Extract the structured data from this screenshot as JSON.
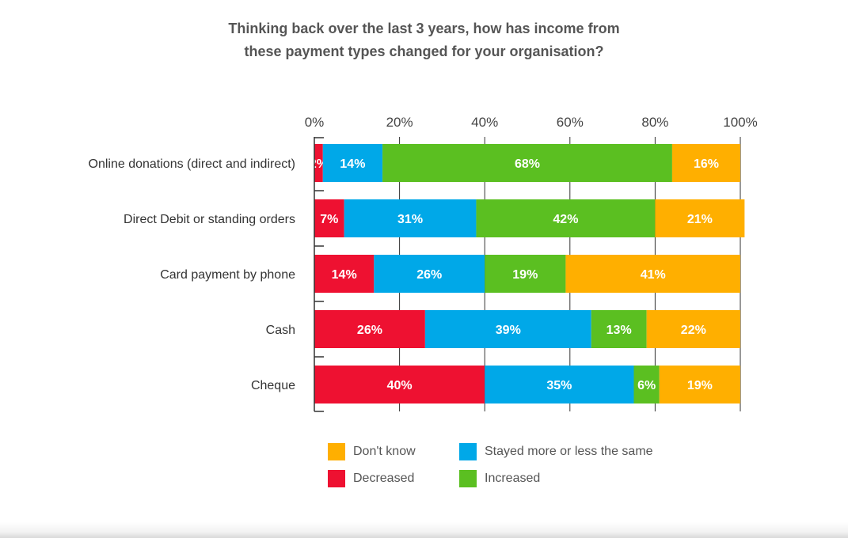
{
  "chart_data": {
    "type": "bar",
    "orientation": "horizontal",
    "stacked": true,
    "title": "Thinking back over the last 3 years, how has income from these payment types changed for your organisation?",
    "title_lines": [
      "Thinking back over the last 3 years, how has income from",
      "these payment types changed for your organisation?"
    ],
    "xlim": [
      0,
      100
    ],
    "xticks": [
      "0%",
      "20%",
      "40%",
      "60%",
      "80%",
      "100%"
    ],
    "tick_values": [
      0,
      20,
      40,
      60,
      80,
      100
    ],
    "categories": [
      "Online donations (direct and indirect)",
      "Direct Debit or standing orders",
      "Card payment by phone",
      "Cash",
      "Cheque"
    ],
    "series": [
      {
        "name": "Decreased",
        "color": "#EE1131",
        "values": [
          2,
          7,
          14,
          26,
          40
        ]
      },
      {
        "name": "Stayed more or less the same",
        "color": "#00A8E8",
        "values": [
          14,
          31,
          26,
          39,
          35
        ]
      },
      {
        "name": "Increased",
        "color": "#5BBF21",
        "values": [
          68,
          42,
          19,
          13,
          6
        ]
      },
      {
        "name": "Don't know",
        "color": "#FFAF00",
        "values": [
          16,
          21,
          41,
          22,
          19
        ]
      }
    ],
    "value_suffix": "%",
    "legend_position": "bottom",
    "grid": true
  },
  "legend": [
    {
      "name": "Don't know",
      "color": "#FFAF00"
    },
    {
      "name": "Stayed more or less the same",
      "color": "#00A8E8"
    },
    {
      "name": "Decreased",
      "color": "#EE1131"
    },
    {
      "name": "Increased",
      "color": "#5BBF21"
    }
  ]
}
